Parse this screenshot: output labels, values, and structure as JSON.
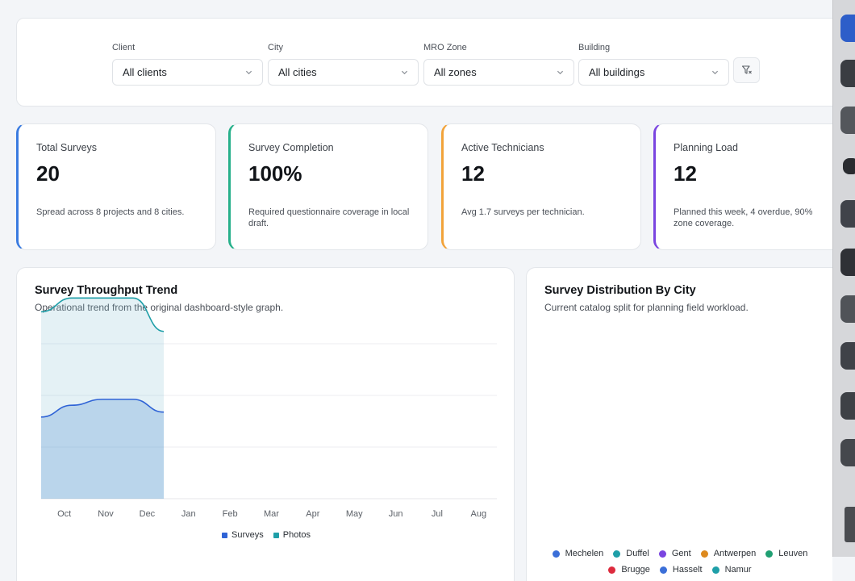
{
  "filters": [
    {
      "label": "Client",
      "value": "All clients"
    },
    {
      "label": "City",
      "value": "All cities"
    },
    {
      "label": "MRO Zone",
      "value": "All zones"
    },
    {
      "label": "Building",
      "value": "All buildings"
    }
  ],
  "kpis": [
    {
      "title": "Total Surveys",
      "value": "20",
      "desc": "Spread across 8 projects and 8 cities.",
      "color": "#3a7be0"
    },
    {
      "title": "Survey Completion",
      "value": "100%",
      "desc": "Required questionnaire coverage in local draft.",
      "color": "#26b08a"
    },
    {
      "title": "Active Technicians",
      "value": "12",
      "desc": "Avg 1.7 surveys per technician.",
      "color": "#f2a33a"
    },
    {
      "title": "Planning Load",
      "value": "12",
      "desc": "Planned this week, 4 overdue, 90% zone coverage.",
      "color": "#7a45e0"
    }
  ],
  "trend": {
    "title": "Survey Throughput Trend",
    "subtitle": "Operational trend from the original dashboard-style graph."
  },
  "distribution": {
    "title": "Survey Distribution By City",
    "subtitle": "Current catalog split for planning field workload.",
    "legend": [
      {
        "name": "Mechelen",
        "color": "#3b6fd8"
      },
      {
        "name": "Duffel",
        "color": "#1f9fa8"
      },
      {
        "name": "Gent",
        "color": "#7a45e0"
      },
      {
        "name": "Antwerpen",
        "color": "#dd8a1f"
      },
      {
        "name": "Leuven",
        "color": "#1f9f72"
      },
      {
        "name": "Brugge",
        "color": "#dd2a3d"
      },
      {
        "name": "Hasselt",
        "color": "#3b6fd8"
      },
      {
        "name": "Namur",
        "color": "#1f9fa8"
      }
    ]
  },
  "chart_data": {
    "type": "area",
    "categories": [
      "Oct",
      "Nov",
      "Dec",
      "Jan",
      "Feb",
      "Mar",
      "Apr",
      "May",
      "Jun",
      "Jul",
      "Aug"
    ],
    "x": [
      "Oct",
      "Nov",
      "Dec",
      "Jan",
      "Feb",
      "Mar",
      "Apr",
      "May",
      "Jun",
      "Jul",
      "Aug"
    ],
    "series": [
      {
        "name": "Surveys",
        "color": "#2f63d6",
        "x": [
          0,
          0.5,
          1,
          1.5,
          2
        ],
        "values": [
          8.3,
          9.5,
          10.1,
          10.1,
          8.8
        ]
      },
      {
        "name": "Photos",
        "color": "#1f9fa8",
        "x": [
          0,
          0.5,
          1,
          1.5,
          2
        ],
        "values": [
          19,
          20.4,
          20.4,
          20.4,
          17
        ]
      }
    ],
    "ylim": [
      0,
      21
    ],
    "grid": true,
    "legend_position": "bottom-center"
  }
}
